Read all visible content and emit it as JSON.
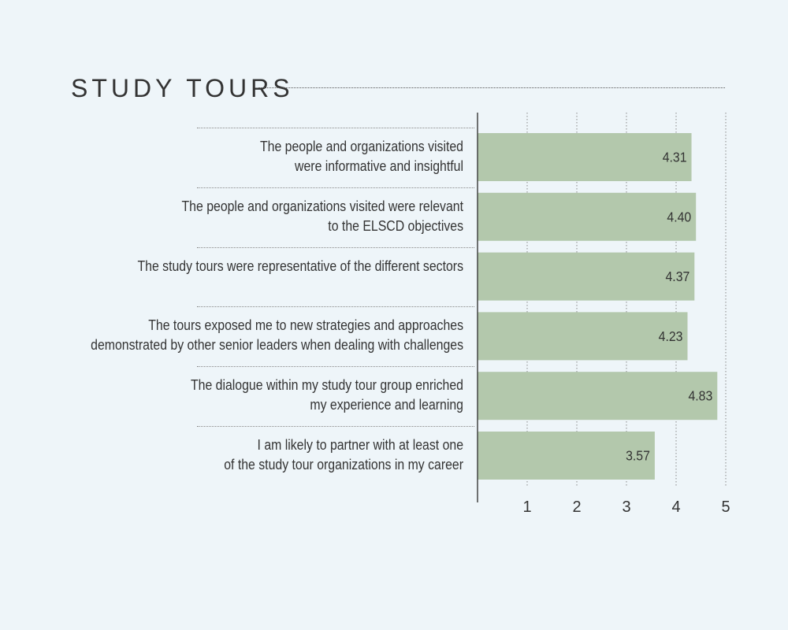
{
  "chart_data": {
    "type": "bar",
    "orientation": "horizontal",
    "title": "STUDY TOURS",
    "xlabel": "",
    "ylabel": "",
    "xlim": [
      0,
      5
    ],
    "xticks": [
      "1",
      "2",
      "3",
      "4",
      "5"
    ],
    "grid": "vertical dotted",
    "bar_color": "#b3c8ac",
    "categories": [
      [
        "The people and organizations visited",
        "were informative and insightful"
      ],
      [
        "The people and organizations visited were relevant",
        "to the ELSCD objectives"
      ],
      [
        "The study tours were representative of the different sectors"
      ],
      [
        "The tours exposed me to new strategies and approaches",
        "demonstrated by other senior leaders when dealing with challenges"
      ],
      [
        "The dialogue within my study tour group enriched",
        "my experience and learning"
      ],
      [
        "I am likely to partner with at least one",
        "of the study tour organizations in my career"
      ]
    ],
    "values": [
      4.31,
      4.4,
      4.37,
      4.23,
      4.83,
      3.57
    ],
    "value_labels": [
      "4.31",
      "4.40",
      "4.37",
      "4.23",
      "4.83",
      "3.57"
    ]
  },
  "colors": {
    "background": "#eef5f9",
    "bar": "#b3c8ac",
    "text": "#333333",
    "axis": "#444444"
  }
}
